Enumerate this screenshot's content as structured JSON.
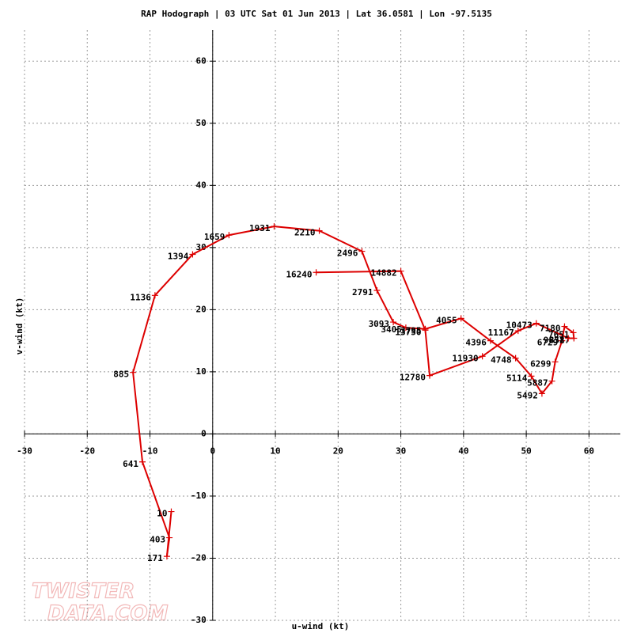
{
  "chart_data": {
    "type": "line",
    "title": "RAP Hodograph | 03 UTC Sat 01 Jun 2013 | Lat 36.0581 | Lon -97.5135",
    "x_label": "u-wind (kt)",
    "y_label": "v-wind (kt)",
    "x": [
      -6.6,
      -7.3,
      -6.9,
      -11.2,
      -12.7,
      -9.2,
      -3.2,
      2.6,
      9.8,
      17.0,
      23.8,
      26.2,
      28.8,
      30.8,
      33.9,
      39.6,
      44.3,
      48.3,
      50.8,
      52.5,
      54.1,
      54.6,
      55.7,
      56.1,
      57.5,
      57.6,
      56.7,
      51.6,
      48.7,
      43.0,
      34.6,
      33.9,
      30.0,
      16.5
    ],
    "series": [
      {
        "color": "#dd0000",
        "values": [
          -12.5,
          -19.7,
          -16.7,
          -4.5,
          9.9,
          22.3,
          28.9,
          32.0,
          33.4,
          32.7,
          29.4,
          23.1,
          18.0,
          17.1,
          16.9,
          18.6,
          15.0,
          12.2,
          9.3,
          6.5,
          8.5,
          11.6,
          15.0,
          17.3,
          16.3,
          15.4,
          15.4,
          17.8,
          16.6,
          12.5,
          9.4,
          16.7,
          26.2,
          26.0
        ]
      }
    ],
    "point_labels": [
      10,
      171,
      403,
      641,
      885,
      1136,
      1394,
      1659,
      1931,
      2210,
      2496,
      2791,
      3093,
      3405,
      3795,
      4055,
      4396,
      4748,
      5114,
      5492,
      5887,
      6299,
      6729,
      7180,
      7651,
      8587,
      9831,
      10473,
      11167,
      11930,
      12780,
      13750,
      14882,
      16240
    ],
    "xlim": [
      -30,
      65
    ],
    "ylim": [
      -30,
      65
    ],
    "xticks": [
      -30,
      -20,
      -10,
      0,
      10,
      20,
      30,
      40,
      50,
      60
    ],
    "yticks": [
      -30,
      -20,
      -10,
      0,
      10,
      20,
      30,
      40,
      50,
      60
    ],
    "grid": true,
    "watermark": [
      "TWISTER",
      "DATA.COM"
    ]
  }
}
